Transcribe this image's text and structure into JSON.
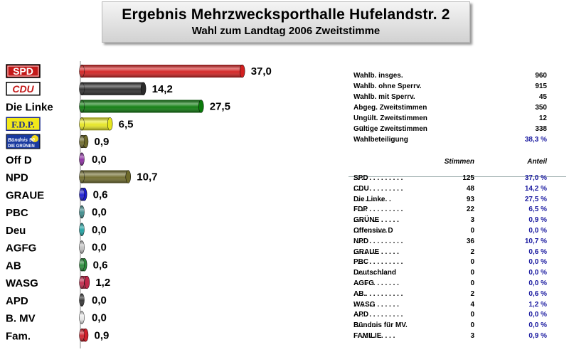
{
  "header": {
    "title": "Ergebnis Mehrzwecksporthalle Hufelandstr. 2",
    "subtitle": "Wahl zum Landtag 2006 Zweitstimme"
  },
  "chart_data": {
    "type": "bar",
    "orientation": "horizontal",
    "categories": [
      "SPD",
      "CDU",
      "Die Linke",
      "F.D.P.",
      "Bündnis 90 Die Grünen",
      "Off D",
      "NPD",
      "GRAUE",
      "PBC",
      "Deu",
      "AGFG",
      "AB",
      "WASG",
      "APD",
      "B. MV",
      "Fam."
    ],
    "value_labels": [
      "37,0",
      "14,2",
      "27,5",
      "6,5",
      "0,9",
      "0,0",
      "10,7",
      "0,6",
      "0,0",
      "0,0",
      "0,0",
      "0,6",
      "1,2",
      "0,0",
      "0,0",
      "0,9"
    ],
    "values": [
      37.0,
      14.2,
      27.5,
      6.5,
      0.9,
      0.0,
      10.7,
      0.6,
      0.0,
      0.0,
      0.0,
      0.6,
      1.2,
      0.0,
      0.0,
      0.9
    ],
    "colors": [
      "#d21f1f",
      "#2a2a2a",
      "#0a7a0a",
      "#e6e620",
      "#6e6a2a",
      "#8a2aa0",
      "#6e6a2a",
      "#1a1ad0",
      "#3a8a8a",
      "#1aa0a0",
      "#c0c0c0",
      "#2a8a3a",
      "#c0284a",
      "#303030",
      "#e8e8e8",
      "#d01f2a"
    ],
    "logo_text": {
      "spd": "SPD",
      "cdu": "CDU",
      "fdp": "F.D.P.",
      "gruene_top": "Bündnis 90",
      "gruene_bottom": "DIE GRÜNEN"
    },
    "xlim": [
      0,
      37
    ]
  },
  "summary": {
    "rows": [
      {
        "label": "Wahlb. insges.",
        "value": "960"
      },
      {
        "label": "Wahlb. ohne Sperrv.",
        "value": "915"
      },
      {
        "label": "Wahlb. mit Sperrv.",
        "value": "45"
      },
      {
        "label": "Abgeg. Zweitstimmen",
        "value": "350"
      },
      {
        "label": "Ungült. Zweitstimmen",
        "value": "12"
      },
      {
        "label": "Gültige Zweitstimmen",
        "value": "338"
      },
      {
        "label": "Wahlbeteiligung",
        "value": "38,3 %"
      }
    ]
  },
  "party_table": {
    "col_stimmen": "Stimmen",
    "col_anteil": "Anteil",
    "rows": [
      {
        "name": "SPD",
        "dots": ". . . . . . . . . . . . .",
        "stimmen": "125",
        "anteil": "37,0 %"
      },
      {
        "name": "CDU",
        "dots": ". . . . . . . . . . . . .",
        "stimmen": "48",
        "anteil": "14,2 %"
      },
      {
        "name": "Die Linke",
        "dots": ". . . . . . . . . .",
        "stimmen": "93",
        "anteil": "27,5 %"
      },
      {
        "name": "FDP",
        "dots": ". . . . . . . . . . . . .",
        "stimmen": "22",
        "anteil": "6,5 %"
      },
      {
        "name": "GRÜNE",
        "dots": ". . . . . . . . . . . .",
        "stimmen": "3",
        "anteil": "0,9 %"
      },
      {
        "name": "Offensive D",
        "dots": ". . . . . . . . .",
        "stimmen": "0",
        "anteil": "0,0 %"
      },
      {
        "name": "NPD",
        "dots": ". . . . . . . . . . . . .",
        "stimmen": "36",
        "anteil": "10,7 %"
      },
      {
        "name": "GRAUE",
        "dots": ". . . . . . . . . . . .",
        "stimmen": "2",
        "anteil": "0,6 %"
      },
      {
        "name": "PBC",
        "dots": ". . . . . . . . . . . . .",
        "stimmen": "0",
        "anteil": "0,0 %"
      },
      {
        "name": "Deutschland",
        "dots": ". . . . . . . . .",
        "stimmen": "0",
        "anteil": "0,0 %"
      },
      {
        "name": "AGFG",
        "dots": ". . . . . . . . . . . .",
        "stimmen": "0",
        "anteil": "0,0 %"
      },
      {
        "name": "AB.",
        "dots": ". . . . . . . . . . . . .",
        "stimmen": "2",
        "anteil": "0,6 %"
      },
      {
        "name": "WASG",
        "dots": ". . . . . . . . . . . .",
        "stimmen": "4",
        "anteil": "1,2 %"
      },
      {
        "name": "APD",
        "dots": ". . . . . . . . . . . . .",
        "stimmen": "0",
        "anteil": "0,0 %"
      },
      {
        "name": "Bündnis für MV.",
        "dots": ". . . . . .",
        "stimmen": "0",
        "anteil": "0,0 %"
      },
      {
        "name": "FAMILIE",
        "dots": ". . . . . . . . . . .",
        "stimmen": "3",
        "anteil": "0,9 %"
      }
    ]
  }
}
